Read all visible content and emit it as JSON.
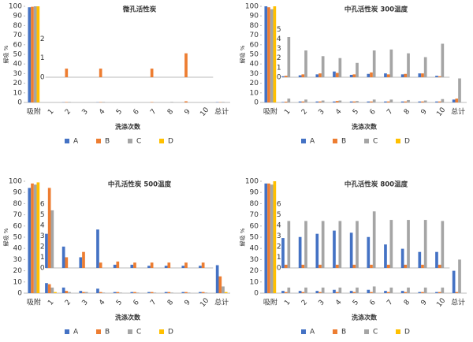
{
  "chart_data": [
    {
      "type": "bar",
      "title": "微孔活性炭",
      "xlabel": "洗涤次数",
      "ylabel": "解吸 %",
      "legend": "bottom",
      "categories": [
        "吸附",
        "1",
        "2",
        "3",
        "4",
        "5",
        "6",
        "7",
        "8",
        "9",
        "10",
        "总计"
      ],
      "ylim": [
        0,
        100
      ],
      "yticks": [
        0,
        10,
        20,
        30,
        40,
        50,
        60,
        70,
        80,
        90,
        100
      ],
      "series": [
        {
          "name": "A",
          "color": "#4472c4",
          "values": [
            99,
            0,
            0.2,
            0,
            0.2,
            0,
            0,
            0,
            0,
            0,
            0,
            0.3
          ]
        },
        {
          "name": "B",
          "color": "#ed7d31",
          "values": [
            99.5,
            0,
            0.4,
            0,
            0.4,
            0,
            0,
            0.4,
            0,
            1.2,
            0,
            0.3
          ]
        },
        {
          "name": "C",
          "color": "#a5a5a5",
          "values": [
            100,
            0,
            0.5,
            0,
            0.5,
            0,
            0,
            0,
            0.5,
            0,
            0,
            0.5
          ]
        },
        {
          "name": "D",
          "color": "#ffc000",
          "values": [
            100,
            0,
            0,
            0,
            0,
            0,
            0,
            0,
            0,
            0,
            0,
            0
          ]
        }
      ],
      "inset": {
        "ylim": [
          0,
          2.8
        ],
        "yticks": [
          0,
          1,
          2
        ],
        "series": [
          {
            "values": [
              0,
              0,
              0,
              0,
              0,
              0,
              0,
              0,
              0,
              0
            ]
          },
          {
            "values": [
              0,
              0.45,
              0,
              0.45,
              0,
              0,
              0.45,
              0,
              1.25,
              0
            ]
          },
          {
            "values": [
              0,
              0,
              0,
              0,
              0,
              0,
              0,
              0,
              0,
              0
            ]
          },
          {
            "values": [
              0,
              0,
              0,
              0,
              0,
              0,
              0,
              0,
              0,
              0
            ]
          }
        ]
      }
    },
    {
      "type": "bar",
      "title": "中孔活性炭 300温度",
      "xlabel": "洗涤次数",
      "ylabel": "解吸 %",
      "legend": "bottom",
      "categories": [
        "吸附",
        "1",
        "2",
        "3",
        "4",
        "5",
        "6",
        "7",
        "8",
        "9",
        "10",
        "总计"
      ],
      "ylim": [
        0,
        100
      ],
      "yticks": [
        0,
        10,
        20,
        30,
        40,
        50,
        60,
        70,
        80,
        90,
        100
      ],
      "series": [
        {
          "name": "A",
          "color": "#4472c4",
          "values": [
            100,
            0.5,
            1,
            1,
            1,
            1,
            1,
            1,
            1,
            1,
            1,
            3
          ]
        },
        {
          "name": "B",
          "color": "#ed7d31",
          "values": [
            99,
            0.8,
            1,
            1,
            1.5,
            1,
            1,
            1,
            1,
            1,
            1,
            4
          ]
        },
        {
          "name": "C",
          "color": "#a5a5a5",
          "values": [
            97,
            4,
            3,
            2,
            2,
            1.5,
            3,
            3,
            2.5,
            2,
            3.5,
            25
          ]
        },
        {
          "name": "D",
          "color": "#ffc000",
          "values": [
            100,
            0,
            0,
            0,
            0,
            0,
            0,
            0,
            0,
            0,
            0,
            0
          ]
        }
      ],
      "inset": {
        "ylim": [
          0,
          5.6
        ],
        "yticks": [
          0,
          1,
          2,
          3,
          4,
          5
        ],
        "series": [
          {
            "values": [
              0.1,
              0.2,
              0.3,
              0.6,
              0.25,
              0.35,
              0.4,
              0.3,
              0.4,
              0.15
            ]
          },
          {
            "values": [
              0.15,
              0.3,
              0.4,
              0.45,
              0.3,
              0.5,
              0.3,
              0.35,
              0.4,
              0.1
            ]
          },
          {
            "values": [
              4.2,
              2.8,
              2.2,
              2.0,
              1.5,
              2.8,
              2.9,
              2.5,
              2.1,
              3.5
            ]
          },
          {
            "values": [
              0,
              0,
              0,
              0,
              0,
              0,
              0,
              0,
              0,
              0
            ]
          }
        ]
      }
    },
    {
      "type": "bar",
      "title": "中孔活性炭 500温度",
      "xlabel": "洗涤次数",
      "ylabel": "解吸 %",
      "legend": "bottom",
      "categories": [
        "吸附",
        "1",
        "2",
        "3",
        "4",
        "5",
        "6",
        "7",
        "8",
        "9",
        "10",
        "总计"
      ],
      "ylim": [
        0,
        100
      ],
      "yticks": [
        0,
        10,
        20,
        30,
        40,
        50,
        60,
        70,
        80,
        90,
        100
      ],
      "series": [
        {
          "name": "A",
          "color": "#4472c4",
          "values": [
            94,
            9,
            5,
            2,
            4,
            1,
            1,
            1,
            1,
            1,
            1,
            25
          ]
        },
        {
          "name": "B",
          "color": "#ed7d31",
          "values": [
            98,
            8,
            2,
            1,
            1,
            1,
            1,
            1,
            1,
            1,
            1,
            15
          ]
        },
        {
          "name": "C",
          "color": "#a5a5a5",
          "values": [
            97,
            5,
            1,
            1,
            0.5,
            0.5,
            0.5,
            0.5,
            0.5,
            0.5,
            0.5,
            6
          ]
        },
        {
          "name": "D",
          "color": "#ffc000",
          "values": [
            99,
            1,
            0,
            0,
            0,
            0,
            0,
            0,
            0,
            0,
            0,
            1
          ]
        }
      ],
      "inset": {
        "ylim": [
          0,
          6.5
        ],
        "yticks": [
          0,
          1,
          2,
          3,
          4,
          5,
          6
        ],
        "series": [
          {
            "values": [
              3.2,
              2,
              1,
              3.6,
              0.3,
              0.3,
              0.2,
              0.2,
              0.2,
              0.2
            ]
          },
          {
            "values": [
              7.5,
              1,
              1.5,
              0.5,
              0.6,
              0.5,
              0.5,
              0.5,
              0.5,
              0.5
            ]
          },
          {
            "values": [
              5.4,
              0,
              0,
              0,
              0,
              0,
              0,
              0,
              0,
              0
            ]
          },
          {
            "values": [
              0,
              0,
              0,
              0,
              0,
              0,
              0,
              0,
              0,
              0
            ]
          }
        ]
      }
    },
    {
      "type": "bar",
      "title": "中孔活性炭 800温度",
      "xlabel": "洗涤次数",
      "ylabel": "解吸 %",
      "legend": "bottom",
      "categories": [
        "吸附",
        "1",
        "2",
        "3",
        "4",
        "5",
        "6",
        "7",
        "8",
        "9",
        "10",
        "总计"
      ],
      "ylim": [
        0,
        100
      ],
      "yticks": [
        0,
        10,
        20,
        30,
        40,
        50,
        60,
        70,
        80,
        90,
        100
      ],
      "series": [
        {
          "name": "A",
          "color": "#4472c4",
          "values": [
            98,
            2,
            2,
            2,
            3,
            2,
            3,
            2,
            2,
            1,
            1,
            20
          ]
        },
        {
          "name": "B",
          "color": "#ed7d31",
          "values": [
            98,
            1,
            1,
            1,
            1,
            1,
            1,
            1,
            1,
            1,
            1,
            1
          ]
        },
        {
          "name": "C",
          "color": "#a5a5a5",
          "values": [
            97,
            5,
            5,
            5,
            5,
            5,
            6,
            5,
            5,
            5,
            5,
            30
          ]
        },
        {
          "name": "D",
          "color": "#ffc000",
          "values": [
            100,
            0,
            0,
            0,
            0,
            0,
            0,
            0,
            0,
            0,
            0,
            0
          ]
        }
      ],
      "inset": {
        "ylim": [
          0,
          6.5
        ],
        "yticks": [
          0,
          1,
          2,
          3,
          4,
          5,
          6
        ],
        "series": [
          {
            "values": [
              2.8,
              2.9,
              3.2,
              3.5,
              3.3,
              2.9,
              2.2,
              1.8,
              1.5,
              1.5
            ]
          },
          {
            "values": [
              0.3,
              0.3,
              0.3,
              0.3,
              0.3,
              0.3,
              0.3,
              0.3,
              0.3,
              0.3
            ]
          },
          {
            "values": [
              4.4,
              4.4,
              4.4,
              4.4,
              4.4,
              5.3,
              4.5,
              4.5,
              4.5,
              4.4
            ]
          },
          {
            "values": [
              0,
              0,
              0,
              0,
              0,
              0,
              0,
              0,
              0,
              0
            ]
          }
        ]
      }
    }
  ]
}
